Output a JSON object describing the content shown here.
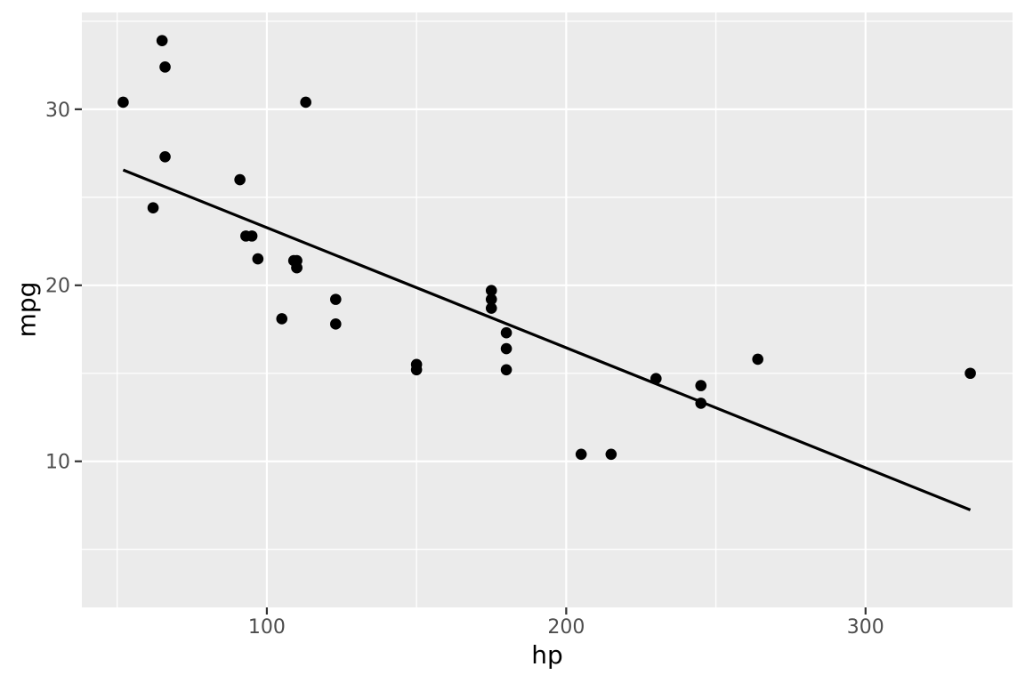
{
  "chart_data": {
    "type": "scatter",
    "title": "",
    "xlabel": "hp",
    "ylabel": "mpg",
    "xlim": [
      38.2,
      349.1
    ],
    "ylim": [
      1.7,
      35.5
    ],
    "x_major_ticks": [
      100,
      200,
      300
    ],
    "y_major_ticks": [
      10,
      20,
      30
    ],
    "x_minor_ticks": [
      50,
      150,
      250,
      350
    ],
    "y_minor_ticks": [
      5,
      15,
      25,
      35
    ],
    "grid": true,
    "legend": "none",
    "points": [
      {
        "hp": 110,
        "mpg": 21.0
      },
      {
        "hp": 110,
        "mpg": 21.0
      },
      {
        "hp": 93,
        "mpg": 22.8
      },
      {
        "hp": 110,
        "mpg": 21.4
      },
      {
        "hp": 175,
        "mpg": 18.7
      },
      {
        "hp": 105,
        "mpg": 18.1
      },
      {
        "hp": 245,
        "mpg": 14.3
      },
      {
        "hp": 62,
        "mpg": 24.4
      },
      {
        "hp": 95,
        "mpg": 22.8
      },
      {
        "hp": 123,
        "mpg": 19.2
      },
      {
        "hp": 123,
        "mpg": 17.8
      },
      {
        "hp": 180,
        "mpg": 16.4
      },
      {
        "hp": 180,
        "mpg": 17.3
      },
      {
        "hp": 180,
        "mpg": 15.2
      },
      {
        "hp": 205,
        "mpg": 10.4
      },
      {
        "hp": 215,
        "mpg": 10.4
      },
      {
        "hp": 230,
        "mpg": 14.7
      },
      {
        "hp": 66,
        "mpg": 32.4
      },
      {
        "hp": 52,
        "mpg": 30.4
      },
      {
        "hp": 65,
        "mpg": 33.9
      },
      {
        "hp": 97,
        "mpg": 21.5
      },
      {
        "hp": 150,
        "mpg": 15.5
      },
      {
        "hp": 150,
        "mpg": 15.2
      },
      {
        "hp": 245,
        "mpg": 13.3
      },
      {
        "hp": 175,
        "mpg": 19.2
      },
      {
        "hp": 66,
        "mpg": 27.3
      },
      {
        "hp": 91,
        "mpg": 26.0
      },
      {
        "hp": 113,
        "mpg": 30.4
      },
      {
        "hp": 264,
        "mpg": 15.8
      },
      {
        "hp": 175,
        "mpg": 19.7
      },
      {
        "hp": 335,
        "mpg": 15.0
      },
      {
        "hp": 109,
        "mpg": 21.4
      }
    ],
    "trend_line": {
      "x": [
        52,
        335
      ],
      "y": [
        26.55,
        7.24
      ]
    },
    "style": {
      "panel_bg": "#EBEBEB",
      "grid_color": "#FFFFFF",
      "point_color": "#000000",
      "trend_color": "#000000",
      "tick_label_color": "#4D4D4D",
      "tick_mark_color": "#333333",
      "axis_title_color": "#000000"
    }
  }
}
